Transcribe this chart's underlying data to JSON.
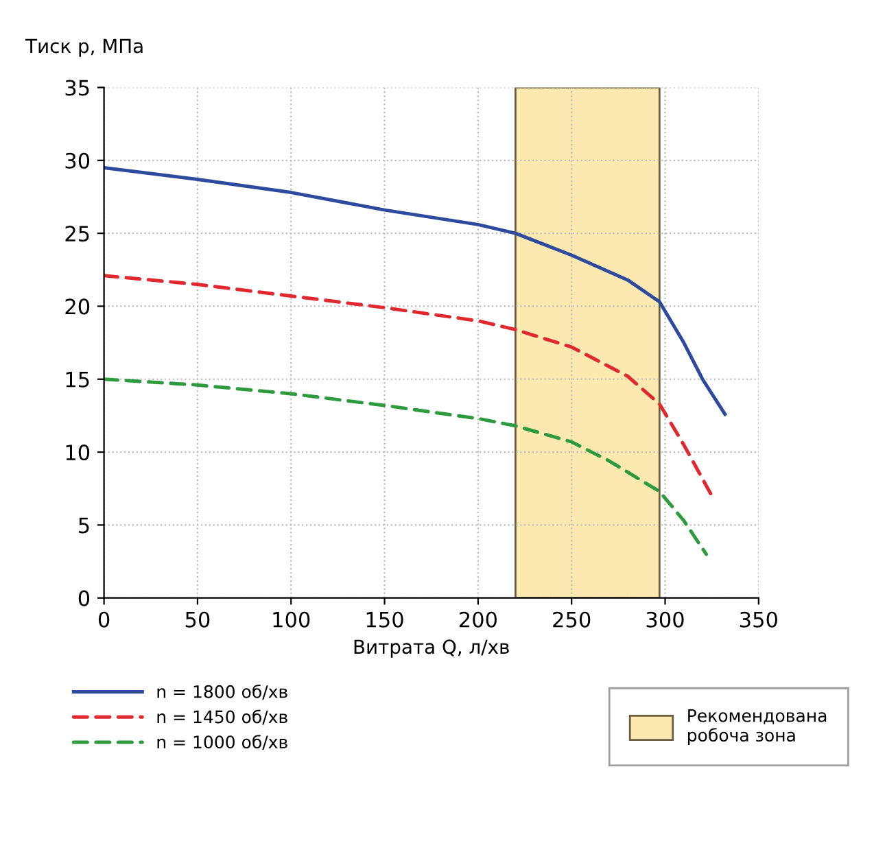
{
  "chart_data": {
    "type": "line",
    "ylabel": "Тиск p, МПа",
    "xlabel": "Витрата Q, л/хв",
    "xlim": [
      0,
      350
    ],
    "xticks": [
      0,
      50,
      100,
      150,
      200,
      250,
      300,
      350
    ],
    "ylim": [
      0,
      35
    ],
    "yticks": [
      0,
      5,
      10,
      15,
      20,
      25,
      30,
      35
    ],
    "grid": true,
    "legend": "bottom",
    "series": [
      {
        "name": "n = 1800 об/хв",
        "color": "#2e4a9e",
        "line_style": "solid",
        "x": [
          0,
          50,
          100,
          150,
          200,
          220,
          250,
          280,
          297,
          310,
          320,
          332
        ],
        "values": [
          29.5,
          28.7,
          27.8,
          26.6,
          25.6,
          25,
          23.5,
          21.8,
          20.3,
          17.5,
          15,
          12.6
        ]
      },
      {
        "name": "n = 1450 об/хв",
        "color": "#e0282e",
        "line_style": "dashed",
        "x": [
          0,
          50,
          100,
          150,
          200,
          220,
          250,
          280,
          297,
          310,
          325
        ],
        "values": [
          22.1,
          21.5,
          20.7,
          19.9,
          19,
          18.4,
          17.2,
          15.2,
          13.3,
          10.5,
          7
        ]
      },
      {
        "name": "n = 1000 об/хв",
        "color": "#2e9a3e",
        "line_style": "dashed",
        "x": [
          0,
          50,
          100,
          150,
          200,
          220,
          250,
          270,
          297,
          310,
          322
        ],
        "values": [
          15,
          14.6,
          14,
          13.2,
          12.3,
          11.8,
          10.7,
          9.4,
          7.3,
          5.3,
          3
        ]
      }
    ],
    "bands": [
      {
        "axis": "x",
        "from": 220,
        "to": 297,
        "label": "Рекомендована\nробоча зона",
        "color": "#fbe9b0"
      }
    ]
  }
}
